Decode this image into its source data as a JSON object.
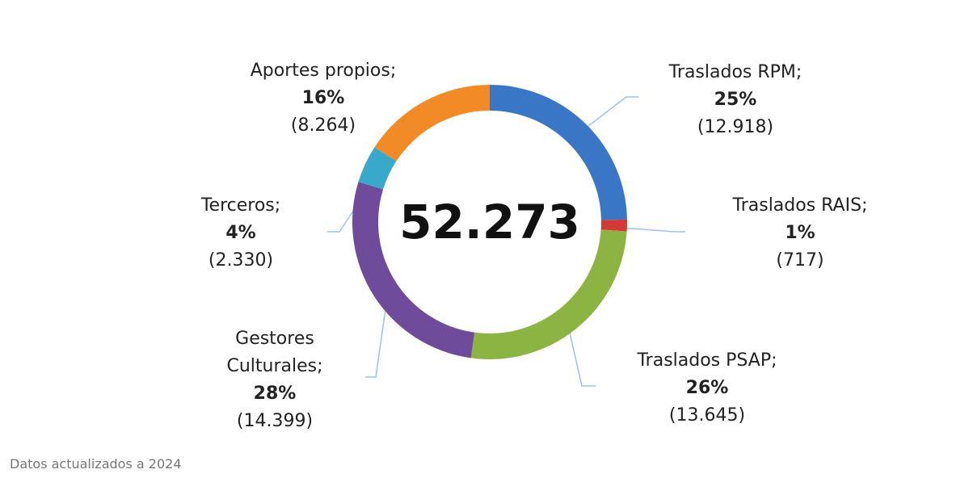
{
  "chart_data": {
    "type": "donut",
    "categories": [
      "Traslados RPM;",
      "Traslados RAIS;",
      "Traslados PSAP;",
      "Gestores Culturales;",
      "Terceros;",
      "Aportes propios;"
    ],
    "values": [
      12918,
      717,
      13645,
      14399,
      2330,
      8264
    ],
    "value_labels": [
      "(12.918)",
      "(717)",
      "(13.645)",
      "(14.399)",
      "(2.330)",
      "(8.264)"
    ],
    "percent_labels": [
      "25%",
      "1%",
      "26%",
      "28%",
      "4%",
      "16%"
    ],
    "colors": [
      "#3a76c6",
      "#d23a33",
      "#8cb443",
      "#6e4b9b",
      "#37a9cb",
      "#f28b25"
    ],
    "center_label": "52.273",
    "footnote": "Datos actualizados a 2024"
  }
}
